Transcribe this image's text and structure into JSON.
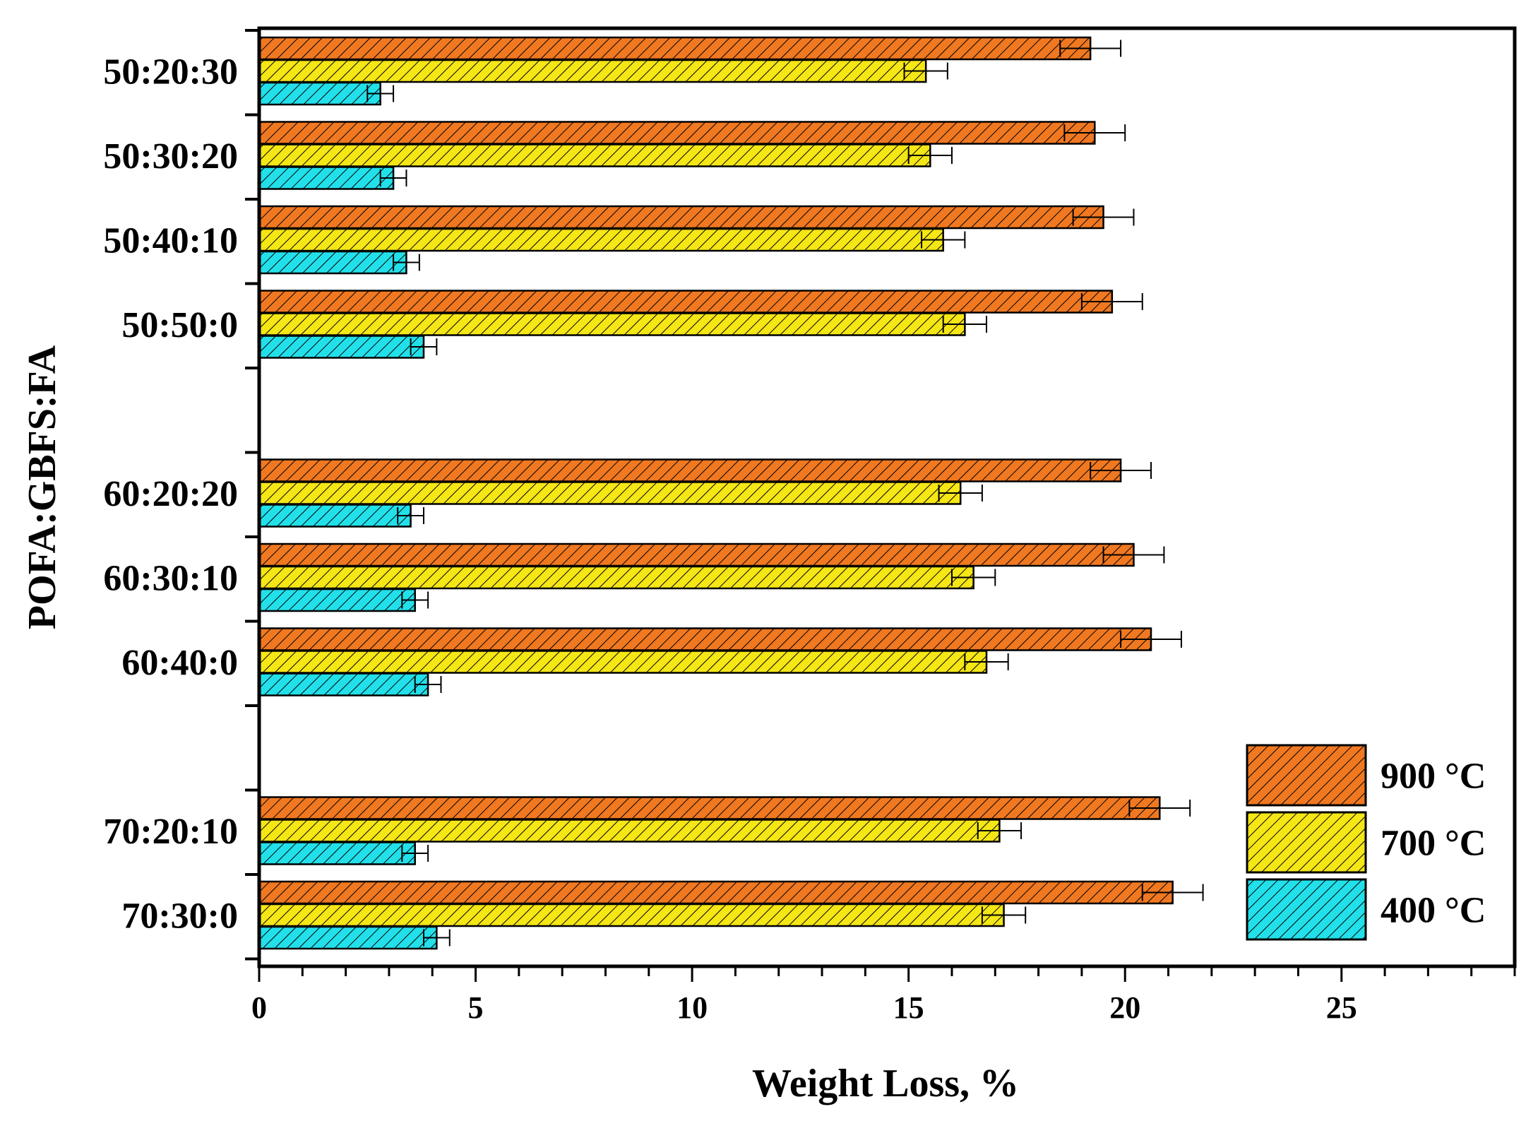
{
  "chart_data": {
    "type": "bar",
    "orientation": "horizontal",
    "categories": [
      "50:20:30",
      "50:30:20",
      "50:40:10",
      "50:50:0",
      "60:20:20",
      "60:30:10",
      "60:40:0",
      "70:20:10",
      "70:30:0"
    ],
    "groups": [
      [
        "50:20:30",
        "50:30:20",
        "50:40:10",
        "50:50:0"
      ],
      [
        "60:20:20",
        "60:30:10",
        "60:40:0"
      ],
      [
        "70:20:10",
        "70:30:0"
      ]
    ],
    "series": [
      {
        "name": "900 °C",
        "color": "#f07820",
        "values": [
          19.2,
          19.3,
          19.5,
          19.7,
          19.9,
          20.2,
          20.6,
          20.8,
          21.1
        ],
        "errors": [
          0.7,
          0.7,
          0.7,
          0.7,
          0.7,
          0.7,
          0.7,
          0.7,
          0.7
        ]
      },
      {
        "name": "700 °C",
        "color": "#f5e615",
        "values": [
          15.4,
          15.5,
          15.8,
          16.3,
          16.2,
          16.5,
          16.8,
          17.1,
          17.2
        ],
        "errors": [
          0.5,
          0.5,
          0.5,
          0.5,
          0.5,
          0.5,
          0.5,
          0.5,
          0.5
        ]
      },
      {
        "name": "400 °C",
        "color": "#22e0ea",
        "values": [
          2.8,
          3.1,
          3.4,
          3.8,
          3.5,
          3.6,
          3.9,
          3.6,
          4.1
        ],
        "errors": [
          0.3,
          0.3,
          0.3,
          0.3,
          0.3,
          0.3,
          0.3,
          0.3,
          0.3
        ]
      }
    ],
    "xlabel": "Weight Loss, %",
    "ylabel": "POFA:GBFS:FA",
    "xlim": [
      0,
      29
    ],
    "x_ticks": [
      "0",
      "5",
      "10",
      "15",
      "20",
      "25"
    ],
    "grid": false,
    "legend_position": "bottom-right",
    "bar_pattern": "diagonal-hatch"
  }
}
